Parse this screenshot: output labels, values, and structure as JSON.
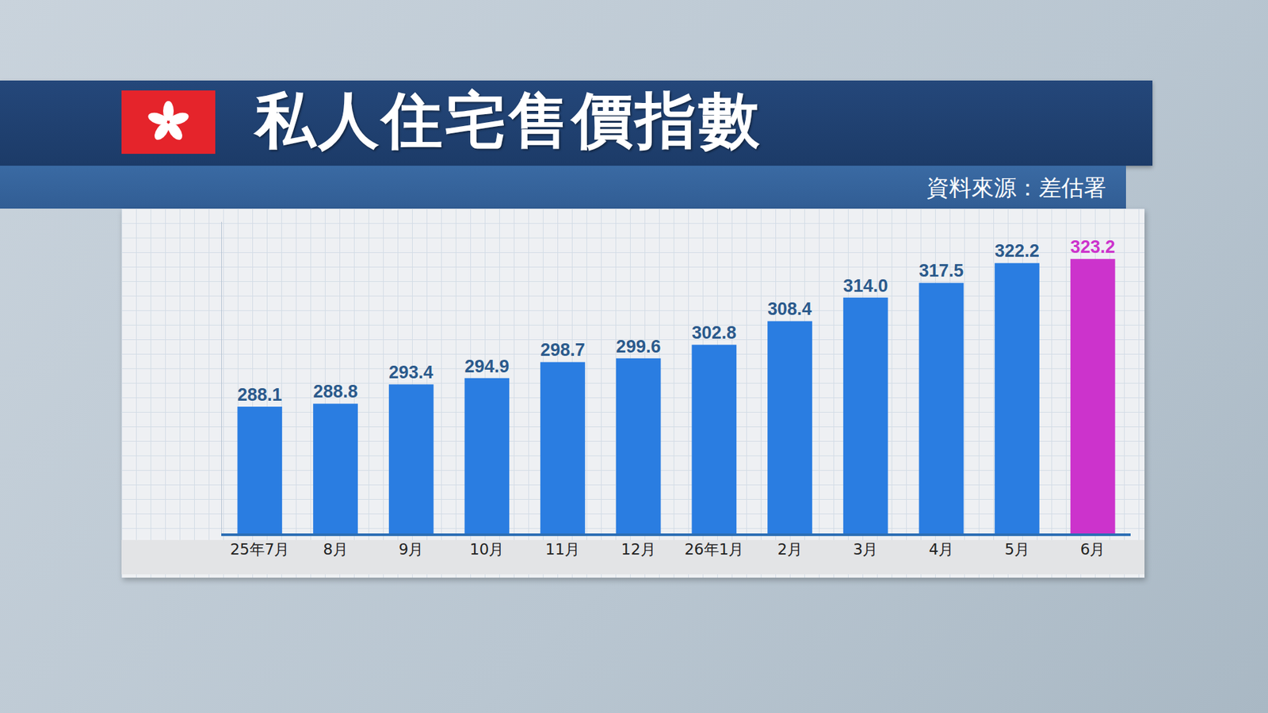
{
  "chart_data": {
    "type": "bar",
    "title": "私人住宅售價指數",
    "source": "資料來源：差估署",
    "categories": [
      "25年7月",
      "8月",
      "9月",
      "10月",
      "11月",
      "12月",
      "26年1月",
      "2月",
      "3月",
      "4月",
      "5月",
      "6月"
    ],
    "values": [
      288.1,
      288.8,
      293.4,
      294.9,
      298.7,
      299.6,
      302.8,
      308.4,
      314.0,
      317.5,
      322.2,
      323.2
    ],
    "value_labels": [
      "288.1",
      "288.8",
      "293.4",
      "294.9",
      "298.7",
      "299.6",
      "302.8",
      "308.4",
      "314.0",
      "317.5",
      "322.2",
      "323.2"
    ],
    "colors": [
      "#2a7de1",
      "#2a7de1",
      "#2a7de1",
      "#2a7de1",
      "#2a7de1",
      "#2a7de1",
      "#2a7de1",
      "#2a7de1",
      "#2a7de1",
      "#2a7de1",
      "#2a7de1",
      "#cc33cc"
    ],
    "ylim": [
      258,
      332
    ],
    "data_labels": true,
    "tick_labels": "x",
    "grid": false
  }
}
